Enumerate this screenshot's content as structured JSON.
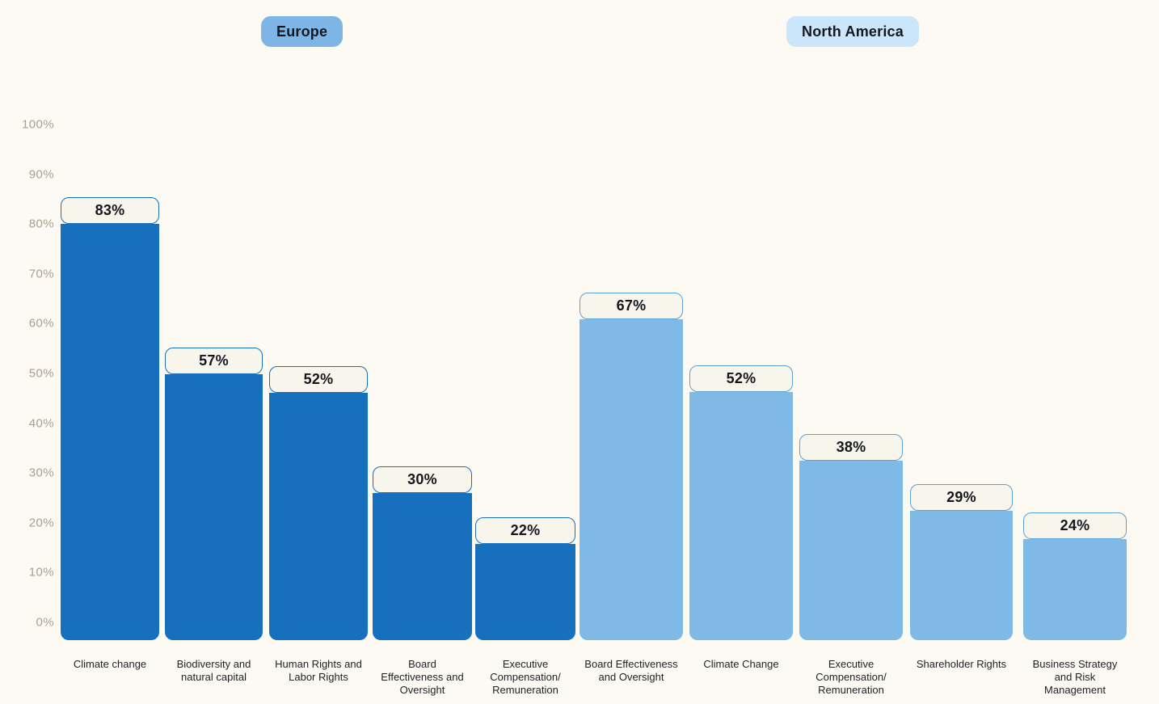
{
  "legend": {
    "europe": {
      "label": "Europe",
      "bg": "#7DB5E4",
      "text_color": "#14181E"
    },
    "north_america": {
      "label": "North America",
      "bg": "#CBE5FA",
      "text_color": "#14181E"
    }
  },
  "y_axis": {
    "labels": [
      "100%",
      "90%",
      "80%",
      "70%",
      "60%",
      "50%",
      "40%",
      "30%",
      "20%",
      "10%",
      "0%"
    ]
  },
  "chart_data": {
    "type": "bar",
    "title": "",
    "xlabel": "",
    "ylabel": "",
    "ylim": [
      0,
      100
    ],
    "y_ticks_percent": [
      100,
      90,
      80,
      70,
      60,
      50,
      40,
      30,
      20,
      10,
      0
    ],
    "grid": false,
    "legend_position": "top",
    "value_suffix": "%",
    "series": [
      {
        "name": "Europe",
        "bar_color": "#1670BD",
        "label_box_border": "#1670BD",
        "categories": [
          "Climate change",
          "Biodiversity and natural capital",
          "Human Rights and Labor Rights",
          "Board Effectiveness and Oversight",
          "Executive Compensation/Remuneration"
        ],
        "values": [
          83,
          57,
          52,
          30,
          22
        ]
      },
      {
        "name": "North America",
        "bar_color": "#7FBAE6",
        "label_box_border": "#5CA0D6",
        "categories": [
          "Board Effectiveness and Oversight",
          "Climate Change",
          "Executive Compensation/Remuneration",
          "Shareholder Rights",
          "Business Strategy and Risk Management"
        ],
        "values": [
          67,
          52,
          38,
          29,
          24
        ]
      }
    ],
    "category_display_lines": [
      "Climate change",
      "Biodiversity and\nnatural capital",
      "Human Rights and\nLabor Rights",
      "Board\nEffectiveness and\nOversight",
      "Executive\nCompensation/\nRemuneration",
      "Board Effectiveness\nand Oversight",
      "Climate Change",
      "Executive\nCompensation/\nRemuneration",
      "Shareholder Rights",
      "Business Strategy\nand Risk\nManagement"
    ]
  },
  "colors": {
    "background": "#FDFAF3",
    "label_box_bg": "#F8F5ED",
    "axis_label": "#A89F8F",
    "category_label": "#1D2127",
    "value_label": "#14181E"
  }
}
